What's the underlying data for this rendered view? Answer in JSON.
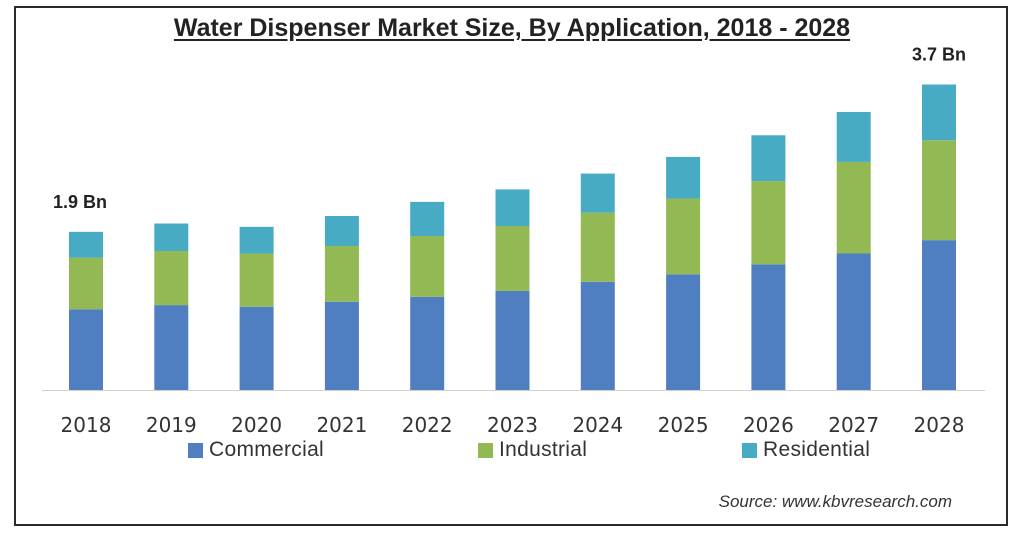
{
  "chart_data": {
    "type": "bar",
    "stacked": true,
    "title": "Water Dispenser Market Size, By Application, 2018 - 2028",
    "categories": [
      "2018",
      "2019",
      "2020",
      "2021",
      "2022",
      "2023",
      "2024",
      "2025",
      "2026",
      "2027",
      "2028"
    ],
    "series": [
      {
        "name": "Commercial",
        "color": "#4f7fc0",
        "values": [
          0.97,
          1.02,
          1.0,
          1.06,
          1.12,
          1.19,
          1.3,
          1.39,
          1.51,
          1.64,
          1.8
        ]
      },
      {
        "name": "Industrial",
        "color": "#93b954",
        "values": [
          0.62,
          0.65,
          0.64,
          0.67,
          0.73,
          0.78,
          0.83,
          0.91,
          1.0,
          1.1,
          1.2
        ]
      },
      {
        "name": "Residential",
        "color": "#47abc4",
        "values": [
          0.31,
          0.33,
          0.32,
          0.36,
          0.41,
          0.44,
          0.47,
          0.5,
          0.55,
          0.6,
          0.67
        ]
      }
    ],
    "annotations": [
      {
        "category": "2018",
        "text": "1.9 Bn"
      },
      {
        "category": "2028",
        "text": "3.7 Bn"
      }
    ],
    "ylim": [
      0,
      3.7
    ],
    "xlabel": "",
    "ylabel": "",
    "grid": false,
    "legend_position": "bottom",
    "source": "Source:  www.kbvresearch.com"
  }
}
